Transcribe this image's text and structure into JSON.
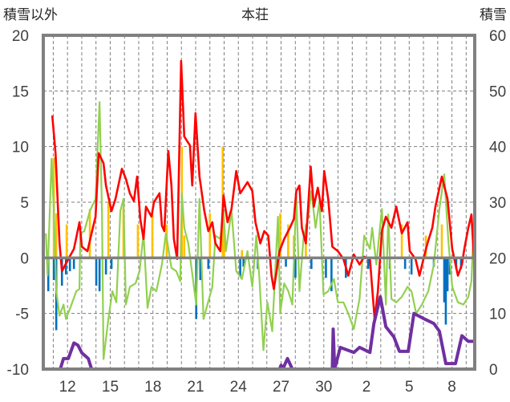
{
  "chart_data": {
    "type": "line",
    "title": "本荘",
    "ylabel_left": "積雪以外",
    "ylabel_right": "積雪",
    "xlim": [
      -1.7,
      28.6
    ],
    "ylim_left": [
      -10,
      20
    ],
    "ylim_right": [
      0,
      60
    ],
    "yticks_left": [
      "-10",
      "-5",
      "0",
      "5",
      "10",
      "15",
      "20"
    ],
    "yticks_right": [
      "0",
      "10",
      "20",
      "30",
      "40",
      "50",
      "60"
    ],
    "xticks": [
      {
        "x": 0,
        "label": "12"
      },
      {
        "x": 3,
        "label": "15"
      },
      {
        "x": 6,
        "label": "18"
      },
      {
        "x": 9,
        "label": "21"
      },
      {
        "x": 12,
        "label": "24"
      },
      {
        "x": 15,
        "label": "27"
      },
      {
        "x": 18,
        "label": "30"
      },
      {
        "x": 21,
        "label": "2"
      },
      {
        "x": 24,
        "label": "5"
      },
      {
        "x": 27,
        "label": "8"
      }
    ],
    "grid": true,
    "colors": {
      "red": "#ff0000",
      "green": "#92d050",
      "orange": "#ffc000",
      "blue": "#0070c0",
      "purple": "#7030a0",
      "axis": "#808080"
    },
    "series": [
      {
        "name": "green-line",
        "axis": "left",
        "color": "#92d050",
        "points": [
          [
            -1.52,
            2.2
          ],
          [
            -1.4,
            -1.6
          ],
          [
            -1.12,
            8.9
          ],
          [
            -0.96,
            4.2
          ],
          [
            -0.79,
            -3.0
          ],
          [
            -0.56,
            -5.2
          ],
          [
            -0.28,
            -4.2
          ],
          [
            -0.11,
            -5.5
          ],
          [
            0.28,
            -4.2
          ],
          [
            0.62,
            -3.0
          ],
          [
            0.84,
            -2.8
          ],
          [
            0.9,
            2.2
          ],
          [
            1.18,
            2.4
          ],
          [
            1.57,
            4.2
          ],
          [
            1.97,
            5.3
          ],
          [
            2.25,
            14.0
          ],
          [
            2.42,
            4.2
          ],
          [
            2.53,
            -9.1
          ],
          [
            2.87,
            -5.5
          ],
          [
            3.15,
            -3.0
          ],
          [
            3.43,
            -4.0
          ],
          [
            3.71,
            4.2
          ],
          [
            3.93,
            5.3
          ],
          [
            4.1,
            -4.2
          ],
          [
            4.38,
            -2.6
          ],
          [
            4.78,
            -2.3
          ],
          [
            5.06,
            -1.2
          ],
          [
            5.34,
            2.2
          ],
          [
            5.62,
            -4.5
          ],
          [
            5.9,
            -2.6
          ],
          [
            6.24,
            -3.0
          ],
          [
            6.63,
            -0.6
          ],
          [
            6.91,
            2.2
          ],
          [
            7.3,
            -0.9
          ],
          [
            7.64,
            -1.2
          ],
          [
            7.92,
            -2.1
          ],
          [
            8.03,
            5.8
          ],
          [
            8.2,
            2.7
          ],
          [
            8.48,
            1.3
          ],
          [
            8.76,
            -1.4
          ],
          [
            9.04,
            -4.2
          ],
          [
            9.27,
            5.3
          ],
          [
            9.55,
            -5.5
          ],
          [
            9.83,
            -4.2
          ],
          [
            10.17,
            -2.6
          ],
          [
            10.39,
            2.0
          ],
          [
            10.73,
            1.7
          ],
          [
            10.96,
            4.2
          ],
          [
            11.12,
            0.6
          ],
          [
            11.52,
            4.2
          ],
          [
            11.85,
            -1.2
          ],
          [
            12.25,
            -1.9
          ],
          [
            12.64,
            0.6
          ],
          [
            12.98,
            -2.6
          ],
          [
            13.26,
            2.0
          ],
          [
            13.48,
            -1.9
          ],
          [
            13.76,
            -8.3
          ],
          [
            14.04,
            -4.0
          ],
          [
            14.38,
            -6.6
          ],
          [
            14.78,
            3.7
          ],
          [
            14.94,
            -5.0
          ],
          [
            15.22,
            -2.3
          ],
          [
            15.51,
            -3.0
          ],
          [
            15.79,
            -4.2
          ],
          [
            16.07,
            5.6
          ],
          [
            16.29,
            -3.0
          ],
          [
            16.57,
            1.7
          ],
          [
            16.91,
            3.7
          ],
          [
            17.13,
            6.0
          ],
          [
            17.42,
            2.7
          ],
          [
            17.7,
            5.1
          ],
          [
            17.98,
            -3.3
          ],
          [
            18.31,
            -3.0
          ],
          [
            18.71,
            -1.9
          ],
          [
            18.99,
            -4.0
          ],
          [
            19.38,
            -4.0
          ],
          [
            19.72,
            -5.0
          ],
          [
            20.11,
            -6.4
          ],
          [
            20.51,
            -3.7
          ],
          [
            20.84,
            2.0
          ],
          [
            21.24,
            0.8
          ],
          [
            21.4,
            2.7
          ],
          [
            21.69,
            -0.6
          ],
          [
            22.08,
            4.4
          ],
          [
            22.36,
            -4.2
          ],
          [
            22.53,
            3.9
          ],
          [
            22.75,
            -3.7
          ],
          [
            23.09,
            -4.0
          ],
          [
            23.48,
            -3.5
          ],
          [
            23.88,
            -2.6
          ],
          [
            24.16,
            -3.0
          ],
          [
            24.49,
            -5.0
          ],
          [
            24.89,
            -4.2
          ],
          [
            25.34,
            -3.0
          ],
          [
            25.73,
            -0.6
          ],
          [
            26.12,
            4.4
          ],
          [
            26.46,
            7.5
          ],
          [
            26.74,
            1.7
          ],
          [
            27.02,
            -2.6
          ],
          [
            27.42,
            -4.0
          ],
          [
            27.81,
            -4.2
          ],
          [
            28.15,
            -3.5
          ],
          [
            28.37,
            -2.1
          ],
          [
            28.54,
            3.2
          ]
        ]
      },
      {
        "name": "red-line",
        "axis": "left",
        "color": "#ff0000",
        "points": [
          [
            -1.07,
            12.8
          ],
          [
            -0.84,
            9.4
          ],
          [
            -0.56,
            1.3
          ],
          [
            -0.39,
            -1.2
          ],
          [
            0.06,
            -0.1
          ],
          [
            0.45,
            0.8
          ],
          [
            0.84,
            3.2
          ],
          [
            1.01,
            1.0
          ],
          [
            1.4,
            0.6
          ],
          [
            1.69,
            2.2
          ],
          [
            1.97,
            3.7
          ],
          [
            2.19,
            9.4
          ],
          [
            2.53,
            8.5
          ],
          [
            2.7,
            6.5
          ],
          [
            3.09,
            4.2
          ],
          [
            3.37,
            5.3
          ],
          [
            3.82,
            8.0
          ],
          [
            4.1,
            7.1
          ],
          [
            4.38,
            5.8
          ],
          [
            4.66,
            5.1
          ],
          [
            4.89,
            7.3
          ],
          [
            5.11,
            3.5
          ],
          [
            5.34,
            1.7
          ],
          [
            5.51,
            4.6
          ],
          [
            5.9,
            3.7
          ],
          [
            6.07,
            5.0
          ],
          [
            6.46,
            5.8
          ],
          [
            6.63,
            2.9
          ],
          [
            6.8,
            2.4
          ],
          [
            7.08,
            9.6
          ],
          [
            7.3,
            6.5
          ],
          [
            7.47,
            1.7
          ],
          [
            7.7,
            -0.1
          ],
          [
            7.98,
            17.7
          ],
          [
            8.2,
            10.9
          ],
          [
            8.6,
            10.1
          ],
          [
            8.76,
            6.5
          ],
          [
            8.99,
            13.0
          ],
          [
            9.27,
            7.3
          ],
          [
            9.61,
            4.2
          ],
          [
            9.89,
            2.4
          ],
          [
            10.17,
            3.2
          ],
          [
            10.39,
            1.3
          ],
          [
            10.73,
            0.6
          ],
          [
            10.96,
            5.6
          ],
          [
            11.24,
            3.2
          ],
          [
            11.52,
            4.4
          ],
          [
            11.85,
            7.8
          ],
          [
            12.13,
            5.8
          ],
          [
            12.64,
            6.8
          ],
          [
            12.98,
            6.0
          ],
          [
            13.2,
            3.2
          ],
          [
            13.54,
            1.3
          ],
          [
            13.82,
            2.4
          ],
          [
            14.1,
            2.0
          ],
          [
            14.33,
            -1.6
          ],
          [
            14.49,
            -2.8
          ],
          [
            14.66,
            -1.4
          ],
          [
            14.89,
            0.6
          ],
          [
            15.22,
            1.7
          ],
          [
            15.62,
            2.7
          ],
          [
            15.9,
            3.5
          ],
          [
            16.07,
            6.0
          ],
          [
            16.29,
            6.5
          ],
          [
            16.46,
            2.7
          ],
          [
            16.74,
            1.3
          ],
          [
            17.08,
            8.2
          ],
          [
            17.3,
            4.6
          ],
          [
            17.58,
            6.3
          ],
          [
            17.87,
            4.2
          ],
          [
            18.03,
            7.8
          ],
          [
            18.31,
            5.3
          ],
          [
            18.6,
            1.0
          ],
          [
            18.99,
            0.6
          ],
          [
            19.38,
            -0.1
          ],
          [
            19.72,
            -1.6
          ],
          [
            20.11,
            0.3
          ],
          [
            20.51,
            -0.6
          ],
          [
            20.84,
            0.1
          ],
          [
            21.24,
            -0.1
          ],
          [
            21.57,
            -5.5
          ],
          [
            21.8,
            -3.0
          ],
          [
            22.08,
            2.4
          ],
          [
            22.36,
            3.7
          ],
          [
            22.75,
            2.7
          ],
          [
            23.09,
            4.6
          ],
          [
            23.48,
            2.2
          ],
          [
            23.88,
            3.2
          ],
          [
            24.04,
            0.6
          ],
          [
            24.44,
            -0.1
          ],
          [
            24.72,
            -1.6
          ],
          [
            25.0,
            -0.1
          ],
          [
            25.28,
            1.3
          ],
          [
            25.62,
            2.7
          ],
          [
            25.84,
            4.6
          ],
          [
            26.29,
            7.3
          ],
          [
            26.69,
            5.3
          ],
          [
            27.02,
            0.8
          ],
          [
            27.42,
            -1.6
          ],
          [
            27.7,
            -0.6
          ],
          [
            27.87,
            0.8
          ],
          [
            28.15,
            2.7
          ],
          [
            28.37,
            3.9
          ],
          [
            28.54,
            0.1
          ]
        ]
      },
      {
        "name": "purple-snow-depth",
        "axis": "right",
        "color": "#7030a0",
        "points": [
          [
            -1.7,
            0
          ],
          [
            -0.51,
            0
          ],
          [
            -0.28,
            1.9
          ],
          [
            0.06,
            1.9
          ],
          [
            0.45,
            4.7
          ],
          [
            0.73,
            4.3
          ],
          [
            1.01,
            2.9
          ],
          [
            1.46,
            1.9
          ],
          [
            1.69,
            0
          ],
          [
            14.89,
            0
          ],
          [
            15.0,
            0.7
          ],
          [
            15.12,
            0
          ],
          [
            15.45,
            1.9
          ],
          [
            15.79,
            0
          ],
          [
            18.6,
            0
          ],
          [
            18.66,
            7.2
          ],
          [
            18.76,
            0
          ],
          [
            19.16,
            3.9
          ],
          [
            20.11,
            3.0
          ],
          [
            20.51,
            3.9
          ],
          [
            21.24,
            3.0
          ],
          [
            21.52,
            8.2
          ],
          [
            21.97,
            13.0
          ],
          [
            22.36,
            7.6
          ],
          [
            22.92,
            5.8
          ],
          [
            23.31,
            3.2
          ],
          [
            23.93,
            3.2
          ],
          [
            24.33,
            10.0
          ],
          [
            25.0,
            9.1
          ],
          [
            25.73,
            8.2
          ],
          [
            26.12,
            6.8
          ],
          [
            26.57,
            1.0
          ],
          [
            27.25,
            1.0
          ],
          [
            27.7,
            6.0
          ],
          [
            28.15,
            5.0
          ],
          [
            28.6,
            5.0
          ]
        ]
      }
    ],
    "bars": [
      {
        "name": "orange-bars",
        "color": "#ffc000",
        "points": [
          [
            -0.96,
            9
          ],
          [
            -0.79,
            4
          ],
          [
            -0.06,
            3
          ],
          [
            1.57,
            4.4
          ],
          [
            2.87,
            5
          ],
          [
            3.93,
            4.5
          ],
          [
            4.94,
            3
          ],
          [
            5.96,
            4
          ],
          [
            6.97,
            3
          ],
          [
            8.03,
            10
          ],
          [
            8.2,
            2
          ],
          [
            10.0,
            4
          ],
          [
            10.9,
            10
          ],
          [
            11.0,
            3
          ],
          [
            12.25,
            0.7
          ],
          [
            14.94,
            4
          ],
          [
            15.5,
            3
          ],
          [
            15.9,
            2
          ],
          [
            16.74,
            3
          ],
          [
            23.48,
            3
          ],
          [
            25.17,
            2
          ],
          [
            26.29,
            3
          ]
        ]
      },
      {
        "name": "blue-bars",
        "color": "#0070c0",
        "points": [
          [
            -1.35,
            -3
          ],
          [
            -0.96,
            -2
          ],
          [
            -0.79,
            -6.5
          ],
          [
            -0.39,
            -2.5
          ],
          [
            -0.11,
            -1.5
          ],
          [
            0.17,
            -1.2
          ],
          [
            0.45,
            -1
          ],
          [
            2.02,
            -2.5
          ],
          [
            2.25,
            -3
          ],
          [
            2.7,
            -1.5
          ],
          [
            3.09,
            -1
          ],
          [
            9.04,
            -5.5
          ],
          [
            9.33,
            -2
          ],
          [
            9.89,
            -1
          ],
          [
            12.13,
            -1.7
          ],
          [
            12.36,
            -0.8
          ],
          [
            13.37,
            -1
          ],
          [
            14.66,
            -0.8
          ],
          [
            15.34,
            -0.8
          ],
          [
            16.01,
            -1.8
          ],
          [
            17.13,
            -1
          ],
          [
            18.15,
            -1.8
          ],
          [
            18.54,
            -3
          ],
          [
            19.55,
            -1.8
          ],
          [
            21.12,
            -1
          ],
          [
            22.64,
            -1
          ],
          [
            23.71,
            -1
          ],
          [
            24.16,
            -1.5
          ],
          [
            25.73,
            -0.8
          ],
          [
            26.46,
            -4
          ],
          [
            26.57,
            -6
          ],
          [
            26.69,
            -3
          ],
          [
            26.85,
            -1.5
          ],
          [
            27.3,
            -1
          ],
          [
            27.64,
            -1
          ]
        ]
      }
    ]
  }
}
